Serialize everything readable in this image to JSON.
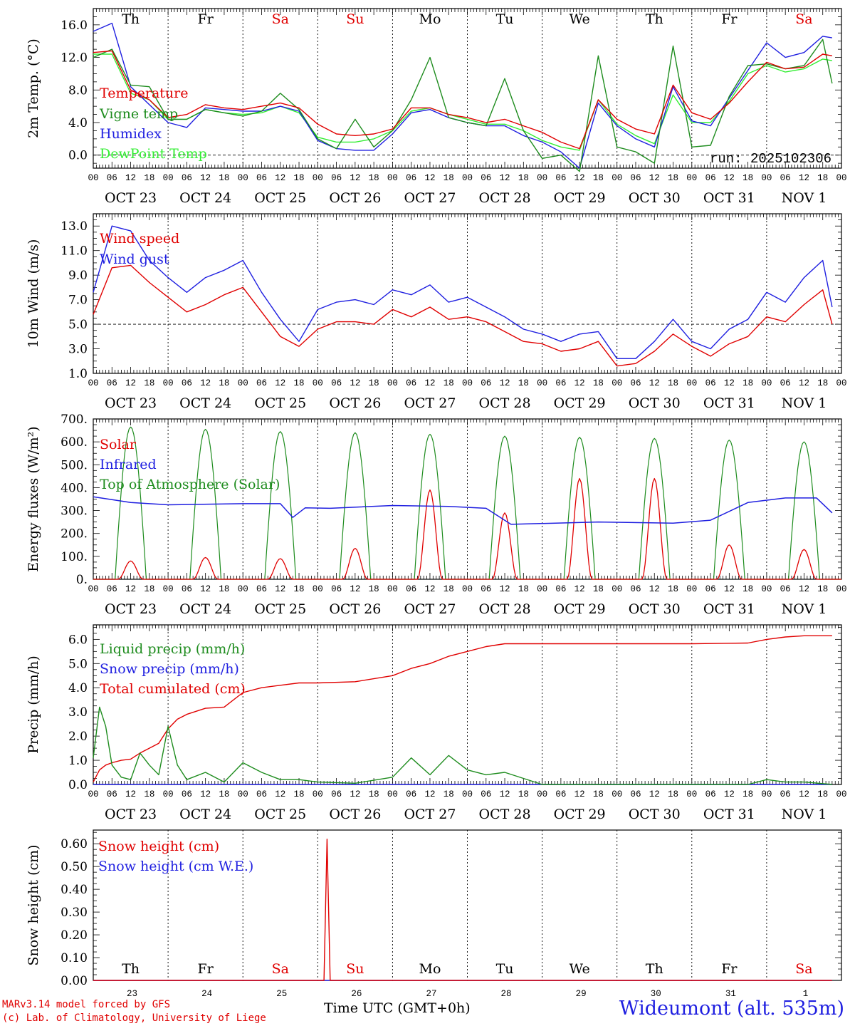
{
  "run_label": "run: 2025102306",
  "footer": {
    "line1": "MARv3.14 model forced by GFS",
    "line2": "(c) Lab. of Climatology, University of Liege",
    "xaxis_title": "Time UTC (GMT+0h)",
    "station": "Wideumont (alt. 535m)"
  },
  "colors": {
    "red": "#e00000",
    "green": "#1e8c1e",
    "blue": "#1f1fe0",
    "lime": "#33ee33",
    "weekend": "#e00000"
  },
  "chart_data": [
    {
      "type": "line",
      "ylabel": "2m Temp. (°C)",
      "ylim": [
        -1.6,
        18.0
      ],
      "yticks": [
        "0.0",
        "4.0",
        "8.0",
        "12.0",
        "16.0"
      ],
      "yticks_values": [
        0,
        4,
        8,
        12,
        16
      ],
      "hline": 0,
      "x_hours": [
        0,
        6,
        12,
        18,
        24,
        30,
        36,
        42,
        48,
        54,
        60,
        66,
        72,
        78,
        84,
        90,
        96,
        102,
        108,
        114,
        120,
        126,
        132,
        138,
        144,
        150,
        156,
        162,
        168,
        174,
        180,
        186,
        192,
        198,
        204,
        210,
        216,
        222,
        228,
        234,
        237
      ],
      "series": [
        {
          "name": "Temperature",
          "color": "red",
          "values": [
            12.6,
            12.8,
            8.0,
            6.8,
            4.6,
            5.0,
            6.2,
            5.8,
            5.6,
            6.0,
            6.4,
            5.8,
            3.8,
            2.6,
            2.4,
            2.6,
            3.2,
            5.8,
            5.8,
            5.0,
            4.6,
            4.0,
            4.4,
            3.6,
            2.8,
            1.6,
            0.8,
            6.8,
            4.4,
            3.2,
            2.6,
            8.6,
            5.2,
            4.4,
            6.4,
            9.0,
            11.4,
            10.6,
            10.8,
            12.4,
            12.2
          ]
        },
        {
          "name": "Vigne temp",
          "color": "green",
          "values": [
            12.0,
            13.0,
            8.6,
            8.4,
            4.4,
            4.4,
            5.6,
            5.2,
            4.8,
            5.4,
            7.6,
            5.6,
            2.0,
            0.8,
            4.4,
            1.0,
            3.0,
            6.8,
            12.0,
            4.6,
            4.0,
            3.6,
            9.4,
            3.0,
            -0.4,
            0.0,
            -2.0,
            12.2,
            1.0,
            0.4,
            -1.0,
            13.4,
            1.0,
            1.2,
            7.2,
            11.0,
            11.2,
            10.6,
            11.0,
            14.2,
            8.8
          ]
        },
        {
          "name": "Humidex",
          "color": "blue",
          "values": [
            15.2,
            16.2,
            8.4,
            6.2,
            4.0,
            3.4,
            5.8,
            5.6,
            5.4,
            5.4,
            6.0,
            5.4,
            1.8,
            0.8,
            0.6,
            0.6,
            2.6,
            5.2,
            5.6,
            4.6,
            4.0,
            3.6,
            3.6,
            2.4,
            1.6,
            0.4,
            -1.6,
            6.4,
            3.6,
            2.0,
            1.0,
            8.4,
            4.2,
            3.6,
            7.0,
            10.4,
            13.8,
            12.0,
            12.6,
            14.6,
            14.4
          ]
        },
        {
          "name": "DewPoint Temp",
          "color": "lime",
          "values": [
            12.4,
            12.4,
            7.6,
            6.8,
            4.4,
            4.4,
            5.6,
            5.2,
            5.0,
            5.2,
            6.0,
            5.2,
            2.2,
            1.6,
            1.6,
            2.0,
            3.0,
            5.4,
            5.8,
            5.0,
            4.4,
            3.8,
            3.8,
            3.0,
            1.8,
            1.0,
            0.6,
            6.8,
            3.8,
            2.4,
            1.4,
            7.4,
            4.0,
            4.0,
            6.6,
            10.0,
            11.0,
            10.2,
            10.6,
            11.8,
            11.6
          ]
        }
      ]
    },
    {
      "type": "line",
      "ylabel": "10m Wind (m/s)",
      "ylim": [
        1.0,
        14.0
      ],
      "yticks": [
        "1.0",
        "3.0",
        "5.0",
        "7.0",
        "9.0",
        "11.0",
        "13.0"
      ],
      "yticks_values": [
        1,
        3,
        5,
        7,
        9,
        11,
        13
      ],
      "hline": 5,
      "x_hours": [
        0,
        6,
        12,
        18,
        24,
        30,
        36,
        42,
        48,
        54,
        60,
        66,
        72,
        78,
        84,
        90,
        96,
        102,
        108,
        114,
        120,
        126,
        132,
        138,
        144,
        150,
        156,
        162,
        168,
        174,
        180,
        186,
        192,
        198,
        204,
        210,
        216,
        222,
        228,
        234,
        237
      ],
      "series": [
        {
          "name": "Wind speed",
          "color": "red",
          "values": [
            5.8,
            9.6,
            9.8,
            8.4,
            7.2,
            6.0,
            6.6,
            7.4,
            8.0,
            6.0,
            4.0,
            3.2,
            4.6,
            5.2,
            5.2,
            5.0,
            6.2,
            5.6,
            6.4,
            5.4,
            5.6,
            5.2,
            4.4,
            3.6,
            3.4,
            2.8,
            3.0,
            3.6,
            1.6,
            1.8,
            2.8,
            4.2,
            3.2,
            2.4,
            3.4,
            4.0,
            5.6,
            5.2,
            6.6,
            7.8,
            5.0
          ]
        },
        {
          "name": "Wind gust",
          "color": "blue",
          "values": [
            7.6,
            13.0,
            12.6,
            10.2,
            8.8,
            7.6,
            8.8,
            9.4,
            10.2,
            7.6,
            5.4,
            3.6,
            6.2,
            6.8,
            7.0,
            6.6,
            7.8,
            7.4,
            8.2,
            6.8,
            7.2,
            6.4,
            5.6,
            4.6,
            4.2,
            3.6,
            4.2,
            4.4,
            2.2,
            2.2,
            3.6,
            5.4,
            3.6,
            3.0,
            4.6,
            5.4,
            7.6,
            6.8,
            8.8,
            10.2,
            6.4
          ]
        }
      ]
    },
    {
      "type": "line",
      "ylabel": "Energy fluxes (W/m²)",
      "ylim": [
        0,
        700
      ],
      "yticks": [
        "0.",
        "100.",
        "200.",
        "300.",
        "400.",
        "500.",
        "600.",
        "700."
      ],
      "yticks_values": [
        0,
        100,
        200,
        300,
        400,
        500,
        600,
        700
      ],
      "daily_peak_hour": 12,
      "toa_peaks": [
        665,
        655,
        645,
        640,
        633,
        625,
        620,
        615,
        608,
        600
      ],
      "solar_peaks": [
        80,
        95,
        90,
        135,
        390,
        290,
        440,
        440,
        150,
        130
      ],
      "infrared": {
        "x_hours": [
          0,
          12,
          24,
          48,
          60,
          64,
          68,
          76,
          96,
          114,
          126,
          134,
          162,
          186,
          198,
          210,
          222,
          232,
          237
        ],
        "values": [
          360,
          335,
          325,
          330,
          330,
          270,
          312,
          310,
          322,
          318,
          310,
          240,
          250,
          245,
          258,
          335,
          355,
          355,
          290
        ]
      },
      "series": [
        {
          "name": "Solar",
          "color": "red"
        },
        {
          "name": "Infrared",
          "color": "blue"
        },
        {
          "name": "Top of Atmosphere (Solar)",
          "color": "green"
        }
      ]
    },
    {
      "type": "line",
      "ylabel": "Precip (mm/h)",
      "ylim": [
        0,
        6.6
      ],
      "yticks": [
        "0.0",
        "1.0",
        "2.0",
        "3.0",
        "4.0",
        "5.0",
        "6.0"
      ],
      "yticks_values": [
        0,
        1,
        2,
        3,
        4,
        5,
        6
      ],
      "x_hours": [
        0,
        2,
        4,
        6,
        9,
        12,
        15,
        18,
        21,
        24,
        27,
        30,
        36,
        42,
        48,
        54,
        60,
        66,
        72,
        84,
        96,
        102,
        108,
        114,
        120,
        126,
        132,
        144,
        168,
        192,
        210,
        216,
        222,
        228,
        237
      ],
      "series": [
        {
          "name": "Liquid precip (mm/h)",
          "color": "green",
          "values": [
            1.1,
            3.2,
            2.4,
            0.8,
            0.3,
            0.2,
            1.3,
            0.8,
            0.4,
            2.4,
            0.8,
            0.2,
            0.5,
            0.1,
            0.9,
            0.5,
            0.2,
            0.2,
            0.1,
            0.05,
            0.3,
            1.1,
            0.4,
            1.2,
            0.6,
            0.4,
            0.5,
            0.0,
            0.0,
            0.0,
            0.0,
            0.2,
            0.1,
            0.1,
            0.0
          ]
        },
        {
          "name": "Snow precip (mm/h)",
          "color": "blue",
          "values": [
            0,
            0,
            0,
            0,
            0,
            0,
            0,
            0,
            0,
            0,
            0,
            0,
            0,
            0,
            0,
            0,
            0,
            0,
            0,
            0,
            0,
            0,
            0,
            0,
            0,
            0,
            0,
            0,
            0,
            0,
            0,
            0,
            0,
            0,
            0
          ]
        },
        {
          "name": "Total cumulated (cm)",
          "color": "red",
          "values": [
            0.1,
            0.6,
            0.8,
            0.9,
            1.0,
            1.05,
            1.3,
            1.5,
            1.7,
            2.3,
            2.7,
            2.9,
            3.15,
            3.2,
            3.8,
            4.0,
            4.1,
            4.2,
            4.2,
            4.25,
            4.5,
            4.8,
            5.0,
            5.3,
            5.5,
            5.7,
            5.82,
            5.82,
            5.82,
            5.82,
            5.85,
            6.0,
            6.1,
            6.15,
            6.15
          ]
        }
      ]
    },
    {
      "type": "line",
      "ylabel": "Snow height (cm)",
      "ylim": [
        0,
        0.66
      ],
      "yticks": [
        "0.00",
        "0.10",
        "0.20",
        "0.30",
        "0.40",
        "0.50",
        "0.60"
      ],
      "yticks_values": [
        0,
        0.1,
        0.2,
        0.3,
        0.4,
        0.5,
        0.6
      ],
      "x_hours": [
        0,
        74,
        75,
        76,
        77,
        237
      ],
      "series": [
        {
          "name": "Snow height (cm)",
          "color": "red",
          "values": [
            0,
            0,
            0.62,
            0,
            0,
            0
          ]
        },
        {
          "name": "Snow height (cm W.E.)",
          "color": "blue",
          "values": [
            0,
            0,
            0,
            0,
            0,
            0
          ]
        }
      ]
    }
  ],
  "days": [
    {
      "abbr": "Th",
      "weekend": false,
      "date": "OCT 23",
      "num": "23"
    },
    {
      "abbr": "Fr",
      "weekend": false,
      "date": "OCT 24",
      "num": "24"
    },
    {
      "abbr": "Sa",
      "weekend": true,
      "date": "OCT 25",
      "num": "25"
    },
    {
      "abbr": "Su",
      "weekend": true,
      "date": "OCT 26",
      "num": "26"
    },
    {
      "abbr": "Mo",
      "weekend": false,
      "date": "OCT 27",
      "num": "27"
    },
    {
      "abbr": "Tu",
      "weekend": false,
      "date": "OCT 28",
      "num": "28"
    },
    {
      "abbr": "We",
      "weekend": false,
      "date": "OCT 29",
      "num": "29"
    },
    {
      "abbr": "Th",
      "weekend": false,
      "date": "OCT 30",
      "num": "30"
    },
    {
      "abbr": "Fr",
      "weekend": false,
      "date": "OCT 31",
      "num": "31"
    },
    {
      "abbr": "Sa",
      "weekend": true,
      "date": "NOV  1",
      "num": "1"
    }
  ],
  "hour_ticks": [
    "00",
    "06",
    "12",
    "18"
  ],
  "last_hour_tick": "00"
}
